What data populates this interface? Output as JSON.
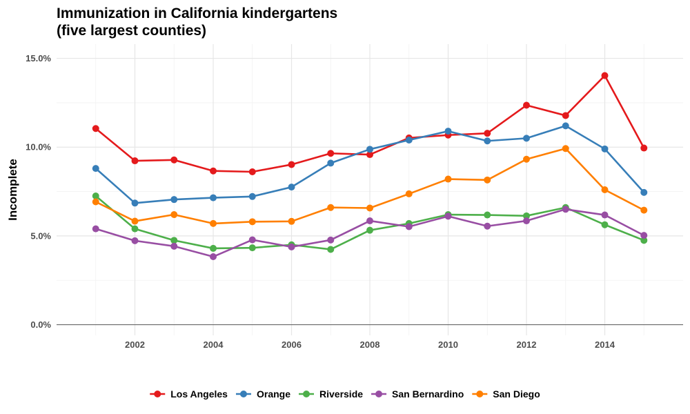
{
  "chart_data": {
    "type": "line",
    "title": [
      "Immunization in California kindergartens",
      "(five largest counties)"
    ],
    "xlabel": "",
    "ylabel": "Incomplete",
    "x": [
      2001,
      2002,
      2003,
      2004,
      2005,
      2006,
      2007,
      2008,
      2009,
      2010,
      2011,
      2012,
      2013,
      2014,
      2015
    ],
    "x_ticks": [
      2002,
      2004,
      2006,
      2008,
      2010,
      2012,
      2014
    ],
    "x_tick_labels": [
      "2002",
      "2004",
      "2006",
      "2008",
      "2010",
      "2012",
      "2014"
    ],
    "y_ticks": [
      0,
      5,
      10,
      15
    ],
    "y_tick_labels": [
      "0.0%",
      "5.0%",
      "10.0%",
      "15.0%"
    ],
    "xlim": [
      2000,
      2016
    ],
    "ylim": [
      -0.6,
      15.8
    ],
    "y_unit": "percent",
    "grid": true,
    "legend_position": "bottom",
    "series": [
      {
        "name": "Los Angeles",
        "color": "#e41a1c",
        "values": [
          11.05,
          9.23,
          9.28,
          8.66,
          8.61,
          9.02,
          9.65,
          9.58,
          10.52,
          10.68,
          10.78,
          12.36,
          11.78,
          14.03,
          9.95
        ]
      },
      {
        "name": "Orange",
        "color": "#377eb8",
        "values": [
          8.8,
          6.85,
          7.05,
          7.15,
          7.22,
          7.75,
          9.1,
          9.88,
          10.4,
          10.9,
          10.35,
          10.5,
          11.2,
          9.9,
          7.45
        ]
      },
      {
        "name": "Riverside",
        "color": "#4daf4a",
        "values": [
          7.25,
          5.4,
          4.75,
          4.3,
          4.33,
          4.5,
          4.24,
          5.32,
          5.7,
          6.2,
          6.18,
          6.13,
          6.6,
          5.63,
          4.75
        ]
      },
      {
        "name": "San Bernardino",
        "color": "#984ea3",
        "values": [
          5.4,
          4.73,
          4.42,
          3.83,
          4.78,
          4.38,
          4.77,
          5.85,
          5.52,
          6.11,
          5.55,
          5.85,
          6.5,
          6.18,
          5.03
        ]
      },
      {
        "name": "San Diego",
        "color": "#ff7f00",
        "values": [
          6.92,
          5.83,
          6.2,
          5.7,
          5.8,
          5.82,
          6.6,
          6.57,
          7.37,
          8.2,
          8.15,
          9.32,
          9.92,
          7.6,
          6.45
        ]
      }
    ]
  }
}
